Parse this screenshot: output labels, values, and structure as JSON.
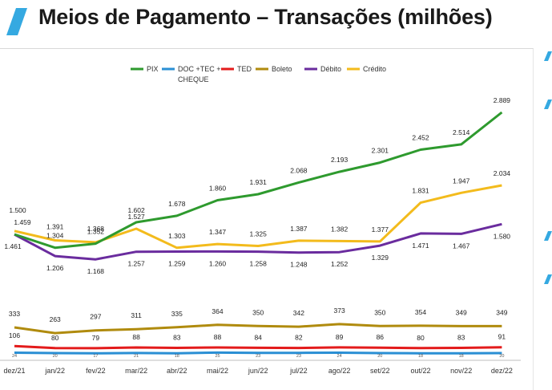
{
  "page": {
    "title": "Meios de Pagamento – Transações (milhões)"
  },
  "colors": {
    "accent": "#35a9e1",
    "pix": "#2e9a2e",
    "doc": "#2a8fd4",
    "ted": "#e31b1b",
    "boleto": "#b08b0e",
    "debito": "#6a2c9e",
    "credito": "#f3bb1c"
  },
  "chart_data": {
    "type": "line",
    "categories": [
      "dez/21",
      "jan/22",
      "fev/22",
      "mar/22",
      "abr/22",
      "mai/22",
      "jun/22",
      "jul/22",
      "ago/22",
      "set/22",
      "out/22",
      "nov/22",
      "dez/22"
    ],
    "series": [
      {
        "key": "pix",
        "name": "PIX",
        "values": [
          1461,
          1304,
          1352,
          1602,
          1678,
          1860,
          1931,
          2068,
          2193,
          2301,
          2452,
          2514,
          2889
        ],
        "labels": [
          "1.461",
          "1.304",
          "1.352",
          "1.602",
          "1.678",
          "1.860",
          "1.931",
          "2.068",
          "2.193",
          "2.301",
          "2.452",
          "2.514",
          "2.889"
        ]
      },
      {
        "key": "doc",
        "name": "DOC +TEC + CHEQUE",
        "values": [
          24,
          20,
          17,
          21,
          18,
          25,
          23,
          23,
          24,
          20,
          18,
          18,
          20
        ],
        "labels": [
          "24",
          "20",
          "17",
          "21",
          "18",
          "25",
          "23",
          "23",
          "24",
          "20",
          "18",
          "18",
          "20"
        ]
      },
      {
        "key": "ted",
        "name": "TED",
        "values": [
          106,
          80,
          79,
          88,
          83,
          88,
          84,
          82,
          89,
          86,
          80,
          83,
          91
        ],
        "labels": [
          "106",
          "80",
          "79",
          "88",
          "83",
          "88",
          "84",
          "82",
          "89",
          "86",
          "80",
          "83",
          "91"
        ]
      },
      {
        "key": "boleto",
        "name": "Boleto",
        "values": [
          333,
          263,
          297,
          311,
          335,
          364,
          350,
          342,
          373,
          350,
          354,
          349,
          349
        ],
        "labels": [
          "333",
          "263",
          "297",
          "311",
          "335",
          "364",
          "350",
          "342",
          "373",
          "350",
          "354",
          "349",
          "349"
        ]
      },
      {
        "key": "debito",
        "name": "Débito",
        "values": [
          1459,
          1206,
          1168,
          1257,
          1259,
          1260,
          1258,
          1248,
          1252,
          1329,
          1471,
          1467,
          1580
        ],
        "labels": [
          "1.459",
          "1.206",
          "1.168",
          "1.257",
          "1.259",
          "1.260",
          "1.258",
          "1.248",
          "1.252",
          "1.329",
          "1.471",
          "1.467",
          "1.580"
        ]
      },
      {
        "key": "credito",
        "name": "Crédito",
        "values": [
          1500,
          1391,
          1368,
          1527,
          1303,
          1347,
          1325,
          1387,
          1382,
          1377,
          1831,
          1947,
          2034
        ],
        "labels": [
          "1.500",
          "1.391",
          "1.368",
          "1.527",
          "1.303",
          "1.347",
          "1.325",
          "1.387",
          "1.382",
          "1.377",
          "1.831",
          "1.947",
          "2.034"
        ]
      }
    ],
    "legend_position": "top",
    "grid": false
  }
}
